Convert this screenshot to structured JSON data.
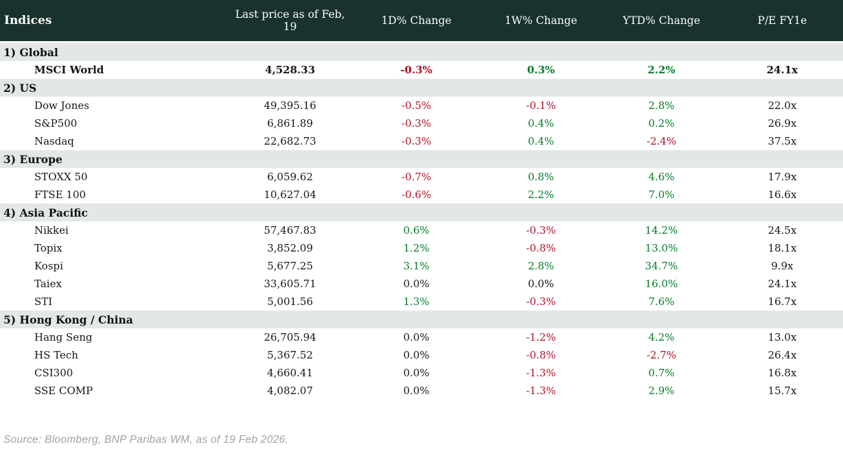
{
  "table": {
    "columns": [
      "Indices",
      "Last price as of Feb, 19",
      "1D% Change",
      "1W% Change",
      "YTD% Change",
      "P/E FY1e"
    ],
    "sections": [
      {
        "label": "1) Global",
        "rows": [
          {
            "name": "MSCI World",
            "bold": true,
            "price": "4,528.33",
            "d1": "-0.3%",
            "w1": "0.3%",
            "ytd": "2.2%",
            "pe": "24.1x"
          }
        ]
      },
      {
        "label": "2) US",
        "rows": [
          {
            "name": "Dow Jones",
            "bold": false,
            "price": "49,395.16",
            "d1": "-0.5%",
            "w1": "-0.1%",
            "ytd": "2.8%",
            "pe": "22.0x"
          },
          {
            "name": "S&P500",
            "bold": false,
            "price": "6,861.89",
            "d1": "-0.3%",
            "w1": "0.4%",
            "ytd": "0.2%",
            "pe": "26.9x"
          },
          {
            "name": "Nasdaq",
            "bold": false,
            "price": "22,682.73",
            "d1": "-0.3%",
            "w1": "0.4%",
            "ytd": "-2.4%",
            "pe": "37.5x"
          }
        ]
      },
      {
        "label": "3) Europe",
        "rows": [
          {
            "name": "STOXX 50",
            "bold": false,
            "price": "6,059.62",
            "d1": "-0.7%",
            "w1": "0.8%",
            "ytd": "4.6%",
            "pe": "17.9x"
          },
          {
            "name": "FTSE 100",
            "bold": false,
            "price": "10,627.04",
            "d1": "-0.6%",
            "w1": "2.2%",
            "ytd": "7.0%",
            "pe": "16.6x"
          }
        ]
      },
      {
        "label": "4) Asia Pacific",
        "rows": [
          {
            "name": "Nikkei",
            "bold": false,
            "price": "57,467.83",
            "d1": "0.6%",
            "w1": "-0.3%",
            "ytd": "14.2%",
            "pe": "24.5x"
          },
          {
            "name": "Topix",
            "bold": false,
            "price": "3,852.09",
            "d1": "1.2%",
            "w1": "-0.8%",
            "ytd": "13.0%",
            "pe": "18.1x"
          },
          {
            "name": "Kospi",
            "bold": false,
            "price": "5,677.25",
            "d1": "3.1%",
            "w1": "2.8%",
            "ytd": "34.7%",
            "pe": "9.9x"
          },
          {
            "name": "Taiex",
            "bold": false,
            "price": "33,605.71",
            "d1": "0.0%",
            "w1": "0.0%",
            "ytd": "16.0%",
            "pe": "24.1x"
          },
          {
            "name": "STI",
            "bold": false,
            "price": "5,001.56",
            "d1": "1.3%",
            "w1": "-0.3%",
            "ytd": "7.6%",
            "pe": "16.7x"
          }
        ]
      },
      {
        "label": "5) Hong Kong / China",
        "rows": [
          {
            "name": "Hang Seng",
            "bold": false,
            "price": "26,705.94",
            "d1": "0.0%",
            "w1": "-1.2%",
            "ytd": "4.2%",
            "pe": "13.0x"
          },
          {
            "name": "HS Tech",
            "bold": false,
            "price": "5,367.52",
            "d1": "0.0%",
            "w1": "-0.8%",
            "ytd": "-2.7%",
            "pe": "26.4x"
          },
          {
            "name": "CSI300",
            "bold": false,
            "price": "4,660.41",
            "d1": "0.0%",
            "w1": "-1.3%",
            "ytd": "0.7%",
            "pe": "16.8x"
          },
          {
            "name": "SSE COMP",
            "bold": false,
            "price": "4,082.07",
            "d1": "0.0%",
            "w1": "-1.3%",
            "ytd": "2.9%",
            "pe": "15.7x"
          }
        ]
      }
    ]
  },
  "footer": {
    "source": "Source: Bloomberg, BNP Paribas WM, as of 19 Feb 2026."
  },
  "colors": {
    "header_background": "#19322e",
    "header_text": "#fdfdfb",
    "section_row_background": "#e3e8e4",
    "positive_change": "#007d26",
    "negative_change": "#b11226",
    "neutral_text": "#151515",
    "source_text": "#9ba2a8"
  }
}
